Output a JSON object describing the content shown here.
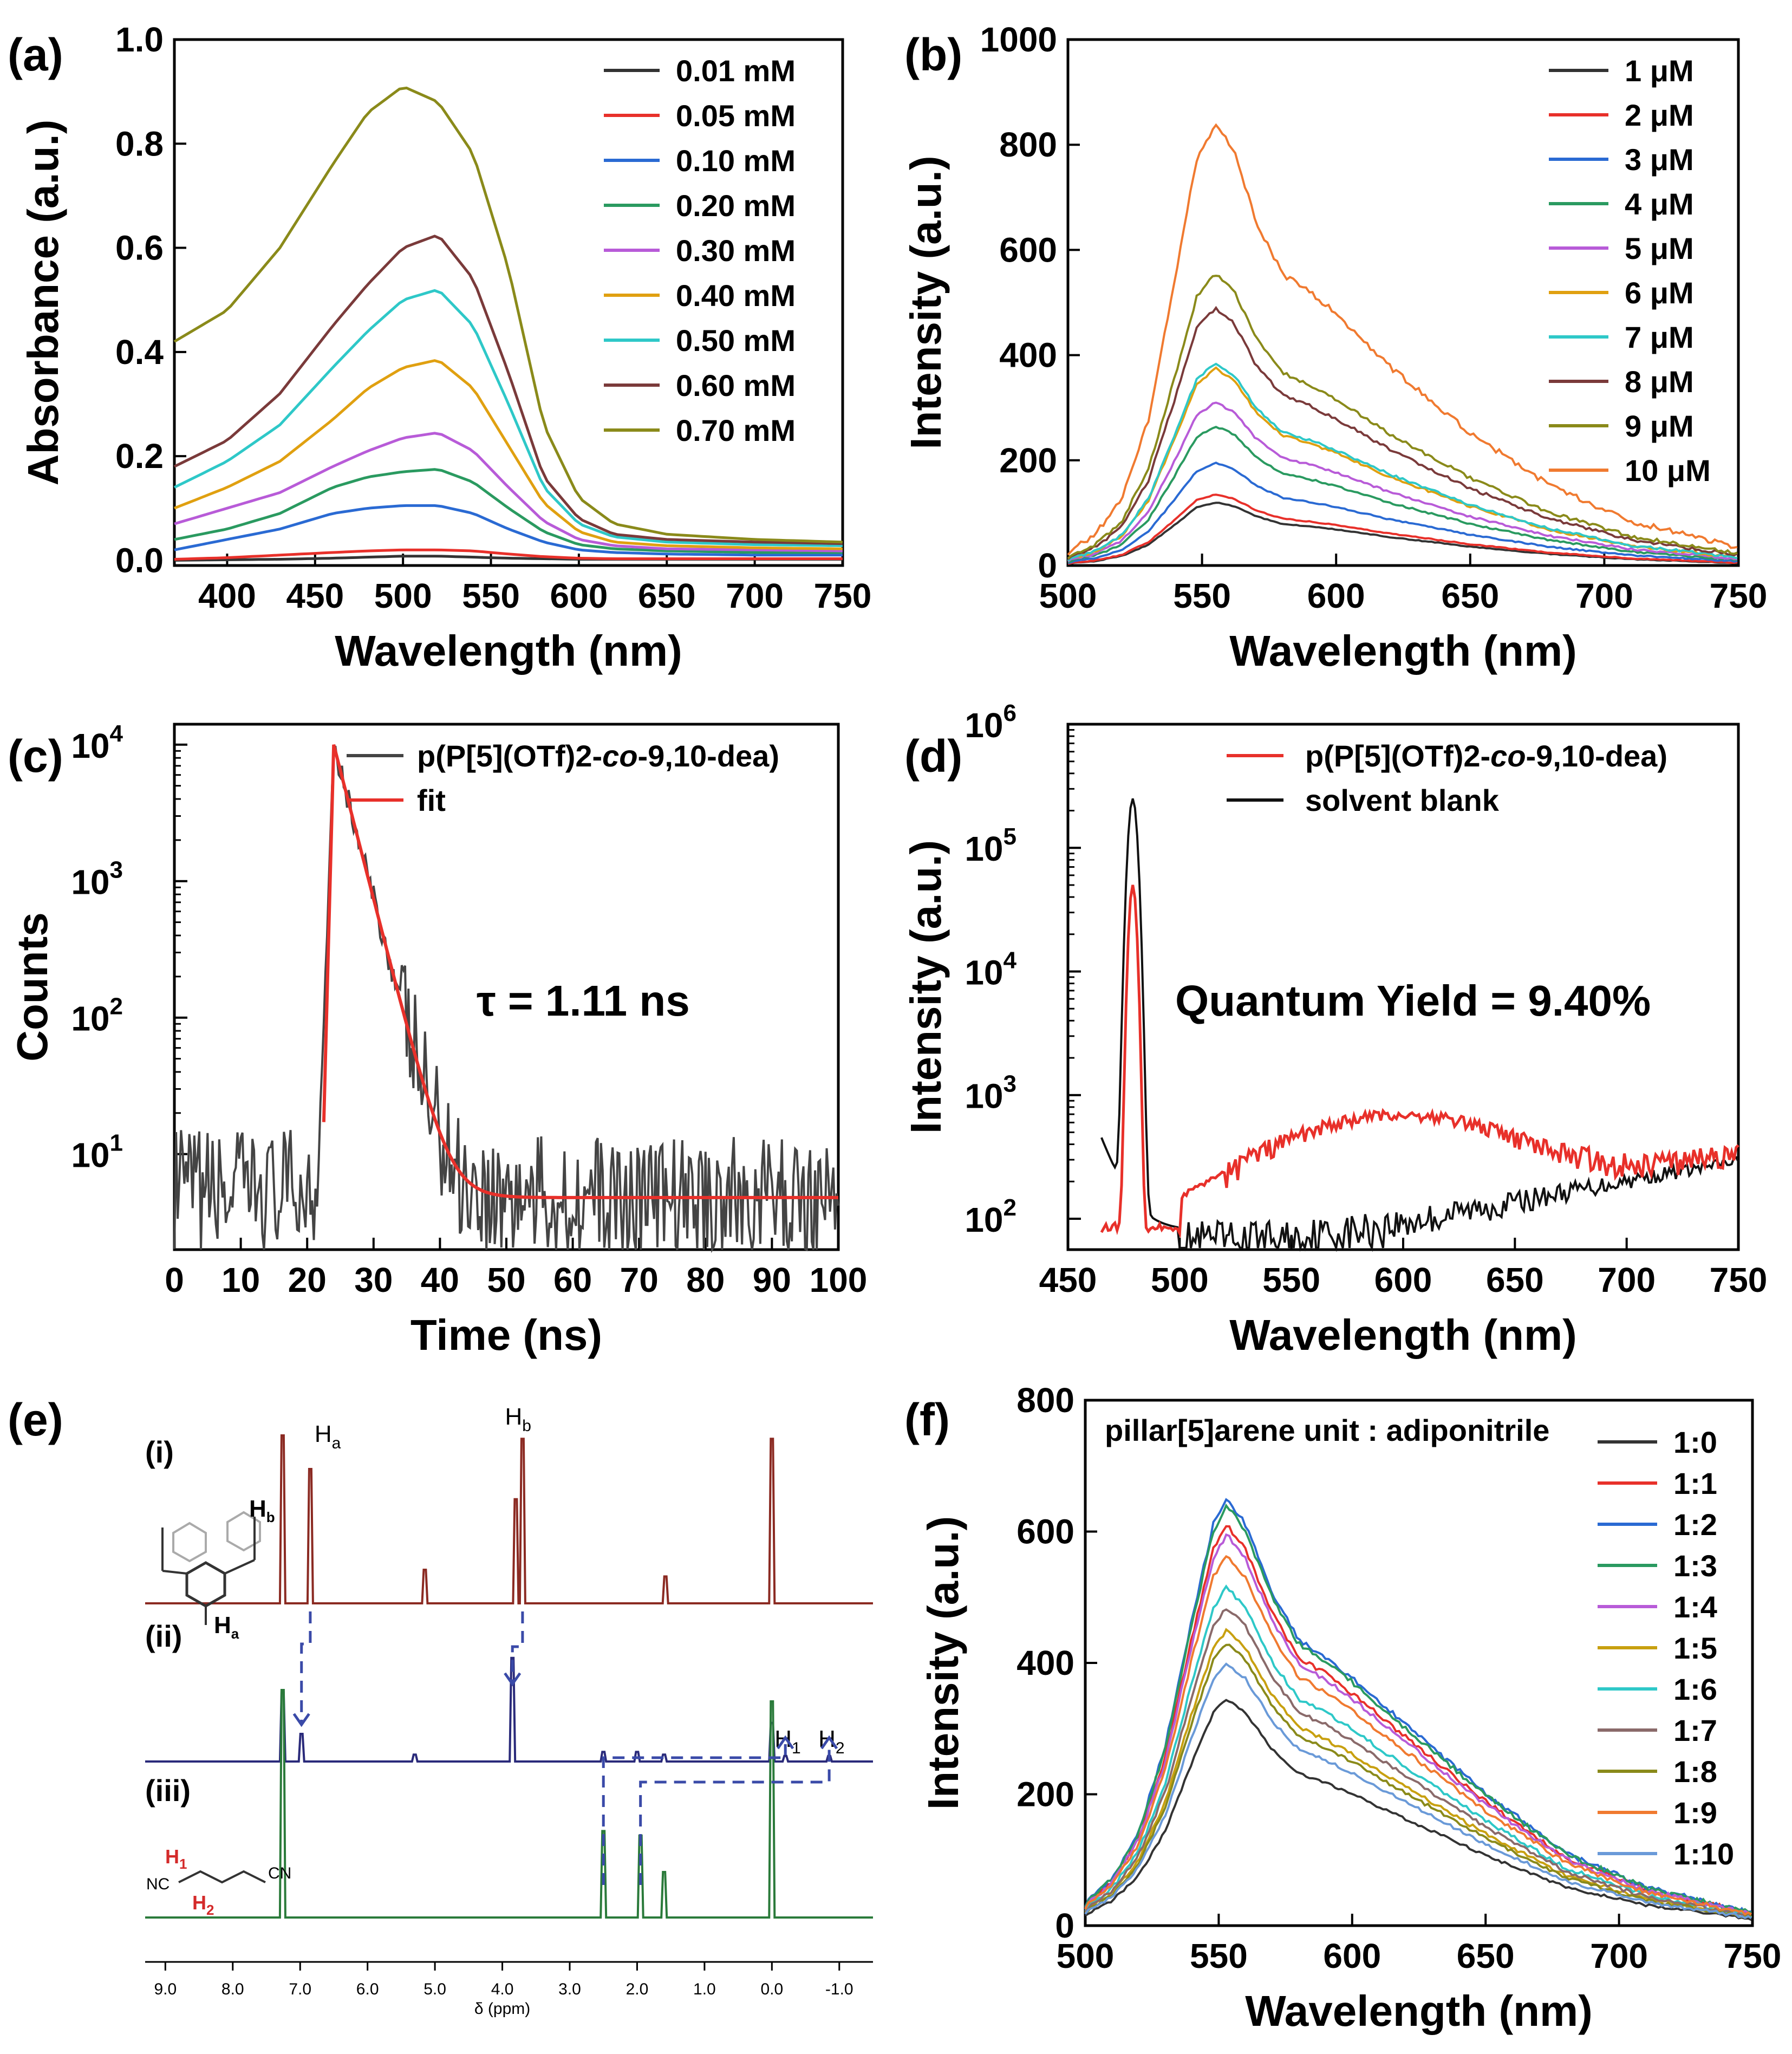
{
  "chart_data": [
    {
      "id": "a",
      "type": "line",
      "panel_label": "(a)",
      "xlabel": "Wavelength (nm)",
      "ylabel": "Absorbance (a.u.)",
      "xlim": [
        370,
        750
      ],
      "ylim": [
        -0.01,
        1.0
      ],
      "x_ticks": [
        400,
        450,
        500,
        550,
        600,
        650,
        700,
        750
      ],
      "y_ticks": [
        0.0,
        0.2,
        0.4,
        0.6,
        0.8,
        1.0
      ],
      "y_tick_labels": [
        "0.0",
        "0.2",
        "0.4",
        "0.6",
        "0.8",
        "1.0"
      ],
      "legend_position": "top-right",
      "x": [
        370,
        400,
        430,
        460,
        480,
        500,
        520,
        540,
        560,
        580,
        600,
        620,
        650,
        700,
        750
      ],
      "series": [
        {
          "name": "0.01 mM",
          "color": "#333333",
          "values": [
            0.0,
            0.001,
            0.002,
            0.004,
            0.006,
            0.008,
            0.008,
            0.006,
            0.004,
            0.003,
            0.002,
            0.002,
            0.002,
            0.002,
            0.002
          ]
        },
        {
          "name": "0.05 mM",
          "color": "#e8302a",
          "values": [
            0.002,
            0.005,
            0.01,
            0.015,
            0.018,
            0.02,
            0.02,
            0.018,
            0.012,
            0.007,
            0.004,
            0.003,
            0.003,
            0.003,
            0.003
          ]
        },
        {
          "name": "0.10 mM",
          "color": "#2a6ad3",
          "values": [
            0.02,
            0.04,
            0.06,
            0.09,
            0.1,
            0.105,
            0.105,
            0.09,
            0.06,
            0.035,
            0.02,
            0.015,
            0.012,
            0.01,
            0.01
          ]
        },
        {
          "name": "0.20 mM",
          "color": "#2a9a60",
          "values": [
            0.04,
            0.06,
            0.09,
            0.14,
            0.16,
            0.17,
            0.175,
            0.15,
            0.1,
            0.055,
            0.03,
            0.022,
            0.018,
            0.015,
            0.015
          ]
        },
        {
          "name": "0.30 mM",
          "color": "#b85bd8",
          "values": [
            0.07,
            0.1,
            0.13,
            0.18,
            0.21,
            0.235,
            0.245,
            0.21,
            0.14,
            0.075,
            0.04,
            0.028,
            0.022,
            0.02,
            0.018
          ]
        },
        {
          "name": "0.40 mM",
          "color": "#e0a010",
          "values": [
            0.1,
            0.14,
            0.19,
            0.27,
            0.33,
            0.37,
            0.385,
            0.33,
            0.22,
            0.11,
            0.055,
            0.035,
            0.028,
            0.024,
            0.022
          ]
        },
        {
          "name": "0.50 mM",
          "color": "#2ec8c8",
          "values": [
            0.14,
            0.19,
            0.26,
            0.37,
            0.44,
            0.5,
            0.52,
            0.45,
            0.3,
            0.14,
            0.07,
            0.045,
            0.035,
            0.03,
            0.028
          ]
        },
        {
          "name": "0.60 mM",
          "color": "#7a3a3a",
          "values": [
            0.18,
            0.23,
            0.32,
            0.45,
            0.53,
            0.6,
            0.625,
            0.54,
            0.36,
            0.16,
            0.08,
            0.05,
            0.04,
            0.035,
            0.032
          ]
        },
        {
          "name": "0.70 mM",
          "color": "#8a8a1a",
          "values": [
            0.42,
            0.48,
            0.6,
            0.76,
            0.86,
            0.91,
            0.88,
            0.78,
            0.56,
            0.26,
            0.12,
            0.07,
            0.05,
            0.04,
            0.035
          ]
        }
      ]
    },
    {
      "id": "b",
      "type": "line",
      "panel_label": "(b)",
      "xlabel": "Wavelength (nm)",
      "ylabel": "Intensity (a.u.)",
      "xlim": [
        500,
        750
      ],
      "ylim": [
        0,
        1000
      ],
      "x_ticks": [
        500,
        550,
        600,
        650,
        700,
        750
      ],
      "y_ticks": [
        0,
        200,
        400,
        600,
        800,
        1000
      ],
      "y_tick_labels": [
        "0",
        "200",
        "400",
        "600",
        "800",
        "1000"
      ],
      "legend_position": "top-right",
      "x": [
        500,
        510,
        520,
        530,
        540,
        548,
        555,
        562,
        570,
        580,
        590,
        600,
        620,
        650,
        680,
        710,
        750
      ],
      "base_shape": [
        0.03,
        0.07,
        0.15,
        0.33,
        0.65,
        0.92,
        1.0,
        0.94,
        0.78,
        0.66,
        0.62,
        0.57,
        0.45,
        0.3,
        0.18,
        0.1,
        0.04
      ],
      "series": [
        {
          "name": "1 μM",
          "color": "#333333",
          "peak": 120
        },
        {
          "name": "2 μM",
          "color": "#e8302a",
          "peak": 135
        },
        {
          "name": "3 μM",
          "color": "#2a6ad3",
          "peak": 195
        },
        {
          "name": "4 μM",
          "color": "#2a9a60",
          "peak": 265
        },
        {
          "name": "5 μM",
          "color": "#b85bd8",
          "peak": 310
        },
        {
          "name": "6 μM",
          "color": "#e0a010",
          "peak": 375
        },
        {
          "name": "7 μM",
          "color": "#2ec8c8",
          "peak": 385
        },
        {
          "name": "8 μM",
          "color": "#7a3a3a",
          "peak": 490
        },
        {
          "name": "9 μM",
          "color": "#8a8a1a",
          "peak": 555
        },
        {
          "name": "10 μM",
          "color": "#f07a30",
          "peak": 840
        }
      ]
    },
    {
      "id": "c",
      "type": "line",
      "panel_label": "(c)",
      "xlabel": "Time (ns)",
      "ylabel": "Counts",
      "xscale": "linear",
      "yscale": "log",
      "xlim": [
        0,
        100
      ],
      "ylim_log10": [
        0.3,
        4.15
      ],
      "x_ticks": [
        0,
        10,
        20,
        30,
        40,
        50,
        60,
        70,
        80,
        90,
        100
      ],
      "y_ticks_log10": [
        1,
        2,
        3,
        4
      ],
      "y_tick_base": "10",
      "y_tick_exponents": [
        "1",
        "2",
        "3",
        "4"
      ],
      "legend_position": "top-right",
      "annotation": "τ = 1.11 ns",
      "tau_ns": 1.11,
      "peak_time": 24,
      "peak_counts": 10000,
      "baseline_counts": 4.8,
      "series": [
        {
          "name": "p(P[5](OTf)2-co-9,10-dea)",
          "color": "#444444",
          "label_parts": [
            "p(P[5](OTf)",
            "2",
            "-",
            "co",
            "-9,10-dea)"
          ]
        },
        {
          "name": "fit",
          "color": "#e8302a"
        }
      ]
    },
    {
      "id": "d",
      "type": "line",
      "panel_label": "(d)",
      "xlabel": "Wavelength (nm)",
      "ylabel": "Intensity (a.u.)",
      "yscale": "log",
      "xlim": [
        450,
        750
      ],
      "ylim_log10": [
        1.75,
        6.0
      ],
      "x_ticks": [
        450,
        500,
        550,
        600,
        650,
        700,
        750
      ],
      "y_ticks_log10": [
        2,
        3,
        4,
        5,
        6
      ],
      "y_tick_base": "10",
      "y_tick_exponents": [
        "2",
        "3",
        "4",
        "5",
        "6"
      ],
      "legend_position": "top-right",
      "annotation": "Quantum Yield = 9.40%",
      "series": [
        {
          "name": "p(P[5](OTf)2-co-9,10-dea)",
          "color": "#e8302a",
          "label_parts": [
            "p(P[5](OTf)",
            "2",
            "-",
            "co",
            "-9,10-dea)"
          ],
          "peak_x": 479,
          "peak_value": 50000
        },
        {
          "name": "solvent blank",
          "color": "#111111",
          "peak_x": 479,
          "peak_value": 250000
        }
      ]
    },
    {
      "id": "e",
      "type": "nmr-spectrum",
      "panel_label": "(e)",
      "xlabel": "δ (ppm)",
      "xlim": [
        9.3,
        -1.5
      ],
      "x_ticks": [
        9.0,
        8.0,
        7.0,
        6.0,
        5.0,
        4.0,
        3.0,
        2.0,
        1.0,
        0.0,
        -1.0
      ],
      "x_tick_labels": [
        "9.0",
        "8.0",
        "7.0",
        "6.0",
        "5.0",
        "4.0",
        "3.0",
        "2.0",
        "1.0",
        "0.0",
        "-1.0"
      ],
      "spectra": [
        {
          "label": "(i)",
          "color": "#8b2a22",
          "peaks": [
            {
              "ppm": 7.26,
              "h": 1.0
            },
            {
              "ppm": 6.85,
              "h": 0.8
            },
            {
              "ppm": 5.15,
              "h": 0.2
            },
            {
              "ppm": 3.8,
              "h": 0.62
            },
            {
              "ppm": 3.7,
              "h": 0.98
            },
            {
              "ppm": 1.58,
              "h": 0.16
            },
            {
              "ppm": 0.0,
              "h": 0.98
            }
          ]
        },
        {
          "label": "(ii)",
          "color": "#2a2a7a",
          "peaks": [
            {
              "ppm": 7.26,
              "h": 0.5
            },
            {
              "ppm": 6.98,
              "h": 0.2
            },
            {
              "ppm": 5.3,
              "h": 0.05
            },
            {
              "ppm": 3.85,
              "h": 0.75
            },
            {
              "ppm": 2.5,
              "h": 0.07
            },
            {
              "ppm": 2.0,
              "h": 0.07
            },
            {
              "ppm": 1.6,
              "h": 0.05
            },
            {
              "ppm": 0.0,
              "h": 0.28
            },
            {
              "ppm": -0.2,
              "h": 0.04
            },
            {
              "ppm": -0.85,
              "h": 0.04
            }
          ]
        },
        {
          "label": "(iii)",
          "color": "#2a7a3a",
          "peaks": [
            {
              "ppm": 7.26,
              "h": 1.0
            },
            {
              "ppm": 2.5,
              "h": 0.38
            },
            {
              "ppm": 1.95,
              "h": 0.36
            },
            {
              "ppm": 1.6,
              "h": 0.2
            },
            {
              "ppm": 0.0,
              "h": 0.95
            }
          ]
        }
      ],
      "peak_labels": [
        {
          "text": "H",
          "sub": "a",
          "spectrum": 0
        },
        {
          "text": "H",
          "sub": "b",
          "spectrum": 0
        },
        {
          "text": "H",
          "sub": "1",
          "spectrum": 1
        },
        {
          "text": "H",
          "sub": "2",
          "spectrum": 1
        }
      ],
      "structure_labels": {
        "pillar_a": "a",
        "pillar_b": "b",
        "h1": "1",
        "h2": "2",
        "cn_left": "NC",
        "cn_right": "CN",
        "h_letter": "H"
      }
    },
    {
      "id": "f",
      "type": "line",
      "panel_label": "(f)",
      "xlabel": "Wavelength (nm)",
      "ylabel": "Intensity (a.u.)",
      "xlim": [
        500,
        750
      ],
      "ylim": [
        0,
        800
      ],
      "x_ticks": [
        500,
        550,
        600,
        650,
        700,
        750
      ],
      "y_ticks": [
        0,
        200,
        400,
        600,
        800
      ],
      "y_tick_labels": [
        "0",
        "200",
        "400",
        "600",
        "800"
      ],
      "legend_title": "pillar[5]arene unit : adiponitrile",
      "legend_position": "top-right",
      "x": [
        500,
        510,
        520,
        530,
        540,
        548,
        553,
        560,
        570,
        580,
        590,
        600,
        620,
        650,
        680,
        710,
        750
      ],
      "base_shape": [
        0.05,
        0.11,
        0.22,
        0.42,
        0.72,
        0.94,
        1.0,
        0.94,
        0.78,
        0.67,
        0.63,
        0.58,
        0.47,
        0.31,
        0.17,
        0.09,
        0.03
      ],
      "series": [
        {
          "name": "1:0",
          "color": "#333333",
          "peak": 345
        },
        {
          "name": "1:1",
          "color": "#e8302a",
          "peak": 610
        },
        {
          "name": "1:2",
          "color": "#2a6ad3",
          "peak": 650
        },
        {
          "name": "1:3",
          "color": "#2a9a60",
          "peak": 640
        },
        {
          "name": "1:4",
          "color": "#b85bd8",
          "peak": 595
        },
        {
          "name": "1:5",
          "color": "#c8a010",
          "peak": 450
        },
        {
          "name": "1:6",
          "color": "#2ec8c8",
          "peak": 515
        },
        {
          "name": "1:7",
          "color": "#8a6a6a",
          "peak": 485
        },
        {
          "name": "1:8",
          "color": "#8a8a1a",
          "peak": 430
        },
        {
          "name": "1:9",
          "color": "#f07a30",
          "peak": 565
        },
        {
          "name": "1:10",
          "color": "#6a9ad8",
          "peak": 400
        }
      ]
    }
  ]
}
